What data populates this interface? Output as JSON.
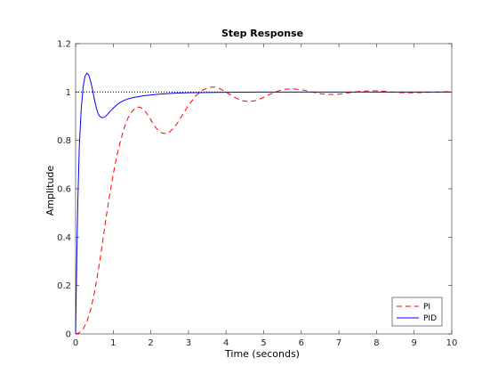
{
  "chart_data": {
    "type": "line",
    "title": "Step Response",
    "xlabel": "Time (seconds)",
    "ylabel": "Amplitude",
    "xlim": [
      0,
      10
    ],
    "ylim": [
      0,
      1.2
    ],
    "xticks": [
      0,
      1,
      2,
      3,
      4,
      5,
      6,
      7,
      8,
      9,
      10
    ],
    "yticks": [
      0,
      0.2,
      0.4,
      0.6,
      0.8,
      1,
      1.2
    ],
    "xtick_labels": [
      "0",
      "1",
      "2",
      "3",
      "4",
      "5",
      "6",
      "7",
      "8",
      "9",
      "10"
    ],
    "ytick_labels": [
      "0",
      "0.2",
      "0.4",
      "0.6",
      "0.8",
      "1",
      "1.2"
    ],
    "grid": false,
    "legend_position": "bottom-right",
    "reference_line": {
      "y": 1,
      "style": "dotted",
      "color": "#000000",
      "x_range": [
        0,
        4
      ]
    },
    "series": [
      {
        "name": "PI",
        "color": "#ff0000",
        "style": "dashed",
        "x": [
          0,
          0.1,
          0.2,
          0.3,
          0.4,
          0.5,
          0.6,
          0.7,
          0.8,
          0.9,
          1.0,
          1.1,
          1.2,
          1.3,
          1.4,
          1.5,
          1.6,
          1.7,
          1.8,
          1.9,
          2.0,
          2.1,
          2.2,
          2.3,
          2.4,
          2.5,
          2.6,
          2.7,
          2.8,
          2.9,
          3.0,
          3.2,
          3.4,
          3.6,
          3.7,
          3.8,
          4.0,
          4.2,
          4.4,
          4.6,
          4.8,
          5.0,
          5.2,
          5.4,
          5.6,
          5.8,
          6.0,
          6.2,
          6.4,
          6.6,
          6.8,
          7.0,
          7.2,
          7.4,
          7.6,
          7.8,
          8.0,
          8.2,
          8.4,
          8.6,
          8.8,
          9.0,
          9.2,
          9.4,
          9.6,
          9.8,
          10.0
        ],
        "values": [
          0,
          0.005,
          0.02,
          0.05,
          0.1,
          0.17,
          0.26,
          0.36,
          0.47,
          0.57,
          0.66,
          0.74,
          0.8,
          0.855,
          0.895,
          0.92,
          0.935,
          0.938,
          0.93,
          0.91,
          0.885,
          0.86,
          0.84,
          0.83,
          0.828,
          0.835,
          0.85,
          0.87,
          0.895,
          0.92,
          0.945,
          0.985,
          1.01,
          1.02,
          1.02,
          1.017,
          1.0,
          0.98,
          0.965,
          0.96,
          0.965,
          0.978,
          0.993,
          1.005,
          1.012,
          1.013,
          1.01,
          1.003,
          0.996,
          0.991,
          0.99,
          0.991,
          0.995,
          1.0,
          1.003,
          1.005,
          1.005,
          1.003,
          1.0,
          0.998,
          0.997,
          0.997,
          0.998,
          0.999,
          1.0,
          1.001,
          1.001
        ]
      },
      {
        "name": "PID",
        "color": "#0000ff",
        "style": "solid",
        "x": [
          0,
          0.03,
          0.06,
          0.1,
          0.15,
          0.2,
          0.25,
          0.3,
          0.35,
          0.4,
          0.45,
          0.5,
          0.55,
          0.6,
          0.65,
          0.7,
          0.75,
          0.8,
          0.85,
          0.9,
          0.95,
          1.0,
          1.1,
          1.2,
          1.3,
          1.4,
          1.5,
          1.6,
          1.8,
          2.0,
          2.2,
          2.4,
          2.6,
          2.8,
          3.0,
          3.5,
          4.0,
          5.0,
          6.0,
          7.0,
          8.0,
          9.0,
          10.0
        ],
        "values": [
          0,
          0.3,
          0.55,
          0.78,
          0.93,
          1.02,
          1.065,
          1.078,
          1.07,
          1.045,
          1.01,
          0.97,
          0.935,
          0.91,
          0.898,
          0.894,
          0.895,
          0.9,
          0.908,
          0.917,
          0.925,
          0.933,
          0.948,
          0.958,
          0.966,
          0.972,
          0.976,
          0.979,
          0.984,
          0.988,
          0.991,
          0.993,
          0.995,
          0.996,
          0.997,
          0.998,
          0.999,
          1.0,
          1.0,
          1.0,
          1.0,
          1.0,
          1.0
        ]
      }
    ]
  }
}
